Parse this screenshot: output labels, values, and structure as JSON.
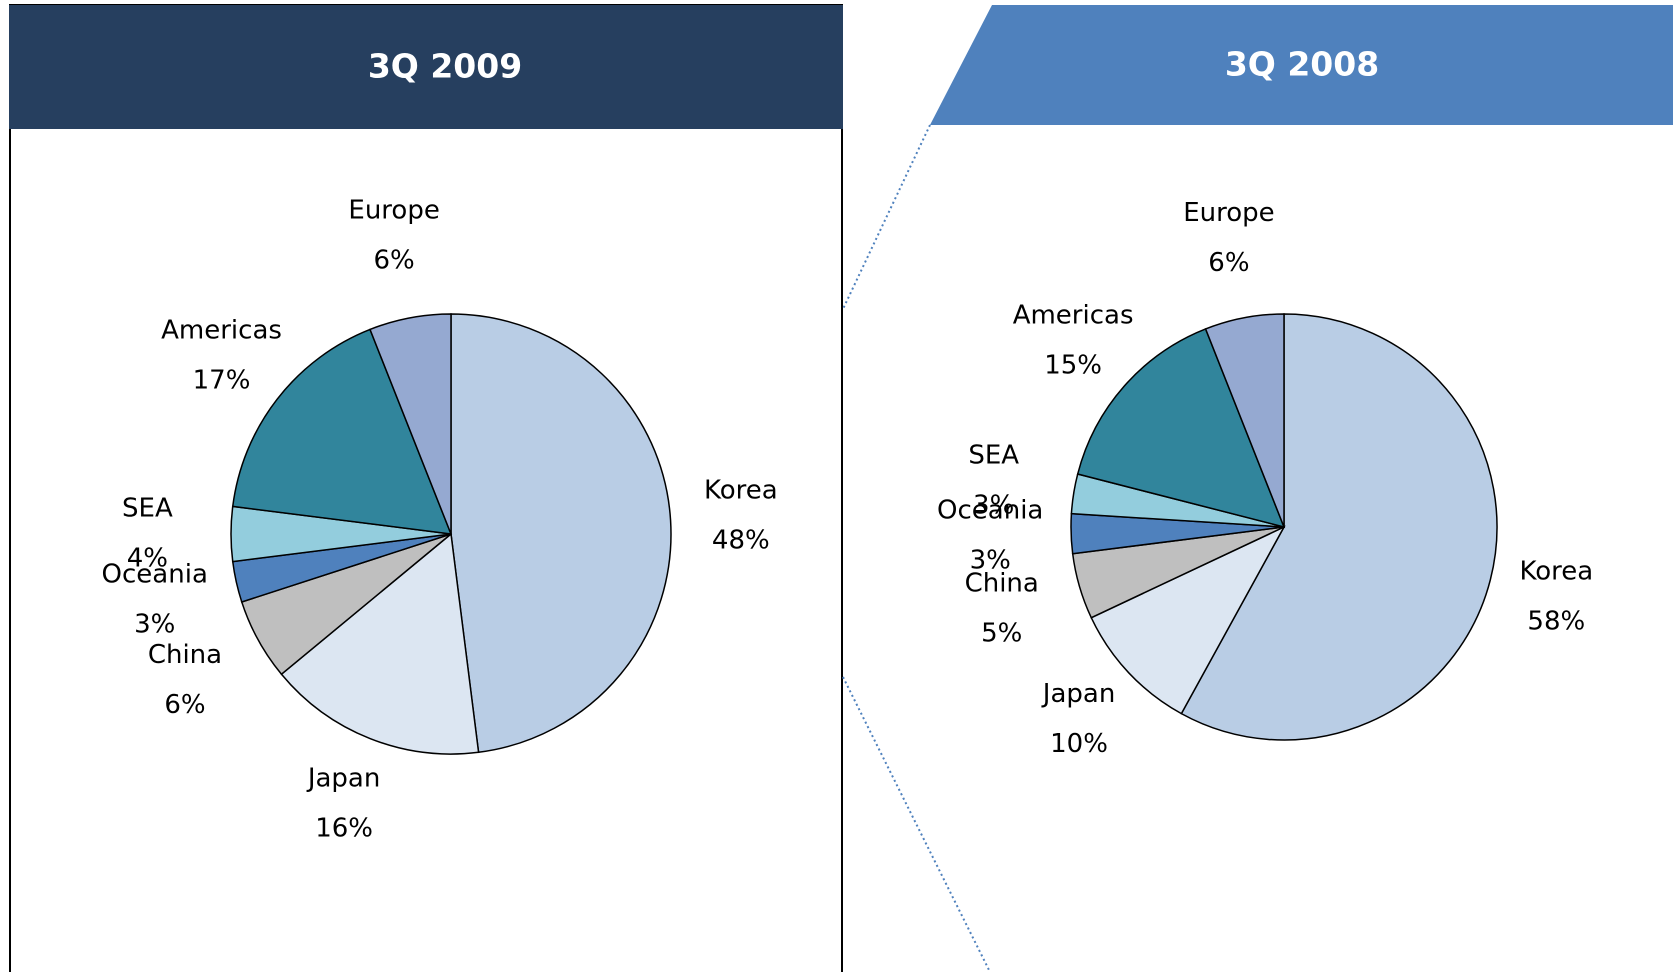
{
  "chart_data": [
    {
      "type": "pie",
      "title": "3Q 2009",
      "categories": [
        "Korea",
        "Japan",
        "China",
        "Oceania",
        "SEA",
        "Americas",
        "Europe"
      ],
      "values": [
        48,
        16,
        6,
        3,
        4,
        17,
        6
      ],
      "value_labels": [
        "48%",
        "16%",
        "6%",
        "3%",
        "4%",
        "17%",
        "6%"
      ],
      "colors": [
        "#b9cde5",
        "#dce6f2",
        "#bfbfbf",
        "#4f81bd",
        "#93cddd",
        "#31859c",
        "#95a9d1"
      ]
    },
    {
      "type": "pie",
      "title": "3Q 2008",
      "categories": [
        "Korea",
        "Japan",
        "China",
        "Oceania",
        "SEA",
        "Americas",
        "Europe"
      ],
      "values": [
        58,
        10,
        5,
        3,
        3,
        15,
        6
      ],
      "value_labels": [
        "58%",
        "10%",
        "5%",
        "3%",
        "3%",
        "15%",
        "6%"
      ],
      "colors": [
        "#b9cde5",
        "#dce6f2",
        "#bfbfbf",
        "#4f81bd",
        "#93cddd",
        "#31859c",
        "#95a9d1"
      ]
    }
  ]
}
